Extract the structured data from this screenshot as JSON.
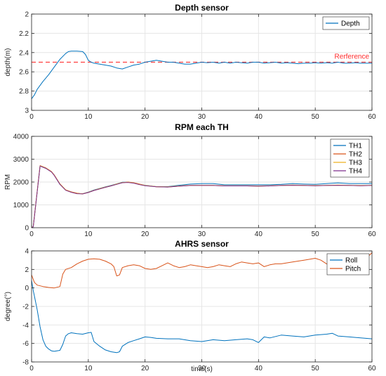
{
  "chart_data": [
    {
      "type": "line",
      "title": "Depth sensor",
      "xlabel": "",
      "ylabel": "depth(m)",
      "xlim": [
        0,
        60
      ],
      "ylim": [
        2,
        3
      ],
      "y_reversed": true,
      "grid": true,
      "legend_placement": "top-right",
      "xticks": [
        0,
        10,
        20,
        30,
        40,
        50,
        60
      ],
      "yticks": [
        2,
        2.2,
        2.4,
        2.6,
        2.8,
        3
      ],
      "ytick_labels": [
        "2",
        "2.2",
        "2.4",
        "2.6",
        "2.8",
        "3"
      ],
      "series": [
        {
          "name": "Depth",
          "color": "#0072BD",
          "x": [
            0,
            0.5,
            1,
            2,
            3,
            4,
            5,
            6,
            6.5,
            7,
            8,
            9,
            9.5,
            10,
            10.5,
            11,
            12,
            13,
            14,
            15,
            16,
            17,
            18,
            19,
            20,
            21,
            22,
            23,
            24,
            25,
            26,
            27,
            28,
            29,
            30,
            31,
            32,
            33,
            34,
            35,
            36,
            37,
            38,
            39,
            40,
            41,
            42,
            43,
            44,
            45,
            46,
            47,
            48,
            49,
            50,
            51,
            52,
            53,
            54,
            55,
            56,
            57,
            58,
            59,
            60
          ],
          "y": [
            2.88,
            2.84,
            2.78,
            2.7,
            2.63,
            2.55,
            2.47,
            2.41,
            2.39,
            2.385,
            2.385,
            2.39,
            2.42,
            2.48,
            2.5,
            2.51,
            2.52,
            2.53,
            2.54,
            2.56,
            2.57,
            2.55,
            2.53,
            2.52,
            2.5,
            2.49,
            2.48,
            2.49,
            2.5,
            2.5,
            2.51,
            2.52,
            2.52,
            2.51,
            2.5,
            2.505,
            2.5,
            2.51,
            2.5,
            2.51,
            2.5,
            2.505,
            2.51,
            2.5,
            2.5,
            2.51,
            2.505,
            2.5,
            2.51,
            2.505,
            2.51,
            2.515,
            2.51,
            2.51,
            2.505,
            2.51,
            2.505,
            2.51,
            2.5,
            2.51,
            2.51,
            2.505,
            2.51,
            2.51,
            2.51
          ]
        }
      ],
      "reference_line": {
        "y": 2.5,
        "label": "Rerference",
        "color": "#ff4040",
        "style": "dashed"
      }
    },
    {
      "type": "line",
      "title": "RPM each TH",
      "xlabel": "",
      "ylabel": "RPM",
      "xlim": [
        0,
        60
      ],
      "ylim": [
        0,
        4000
      ],
      "grid": true,
      "legend_placement": "top-right",
      "xticks": [
        0,
        10,
        20,
        30,
        40,
        50,
        60
      ],
      "yticks": [
        0,
        1000,
        2000,
        3000,
        4000
      ],
      "ytick_labels": [
        "0",
        "1000",
        "2000",
        "3000",
        "4000"
      ],
      "x": [
        0,
        0.3,
        1.5,
        2.5,
        3.5,
        4,
        5,
        6,
        7,
        8,
        9,
        10,
        11,
        12,
        13,
        14,
        15,
        16,
        17,
        18,
        19,
        20,
        22,
        24,
        26,
        28,
        30,
        32,
        34,
        36,
        38,
        40,
        42,
        44,
        46,
        48,
        50,
        52,
        54,
        56,
        58,
        60
      ],
      "series": [
        {
          "name": "TH1",
          "color": "#0072BD",
          "values": [
            0,
            50,
            2700,
            2600,
            2450,
            2300,
            1900,
            1650,
            1560,
            1500,
            1490,
            1560,
            1650,
            1720,
            1790,
            1850,
            1920,
            1990,
            1990,
            1960,
            1900,
            1860,
            1800,
            1800,
            1860,
            1910,
            1930,
            1930,
            1880,
            1880,
            1880,
            1880,
            1880,
            1900,
            1930,
            1910,
            1900,
            1930,
            1960,
            1930,
            1930,
            1930
          ]
        },
        {
          "name": "TH2",
          "color": "#D95319",
          "values": [
            0,
            60,
            2720,
            2620,
            2460,
            2310,
            1920,
            1660,
            1570,
            1510,
            1480,
            1540,
            1630,
            1700,
            1770,
            1830,
            1910,
            1970,
            2000,
            1970,
            1910,
            1850,
            1790,
            1780,
            1820,
            1850,
            1850,
            1850,
            1830,
            1830,
            1830,
            1820,
            1830,
            1850,
            1860,
            1850,
            1840,
            1850,
            1860,
            1850,
            1840,
            1850
          ]
        },
        {
          "name": "TH3",
          "color": "#EDB120",
          "values": [
            0,
            55,
            2710,
            2610,
            2450,
            2300,
            1910,
            1650,
            1560,
            1500,
            1490,
            1550,
            1640,
            1710,
            1780,
            1840,
            1910,
            1980,
            1990,
            1960,
            1900,
            1850,
            1800,
            1790,
            1830,
            1860,
            1860,
            1860,
            1840,
            1840,
            1840,
            1830,
            1840,
            1860,
            1870,
            1860,
            1850,
            1860,
            1870,
            1860,
            1850,
            1860
          ]
        },
        {
          "name": "TH4",
          "color": "#7E2F8E",
          "values": [
            0,
            50,
            2700,
            2600,
            2440,
            2290,
            1900,
            1640,
            1550,
            1490,
            1480,
            1540,
            1630,
            1700,
            1770,
            1830,
            1900,
            1970,
            1980,
            1950,
            1890,
            1840,
            1790,
            1780,
            1820,
            1850,
            1850,
            1850,
            1830,
            1830,
            1830,
            1820,
            1830,
            1850,
            1860,
            1850,
            1840,
            1850,
            1860,
            1850,
            1840,
            1850
          ]
        }
      ]
    },
    {
      "type": "line",
      "title": "AHRS sensor",
      "xlabel": "time(s)",
      "ylabel": "degree(°)",
      "xlim": [
        0,
        60
      ],
      "ylim": [
        -8,
        4
      ],
      "grid": true,
      "legend_placement": "top-right",
      "xticks": [
        0,
        10,
        20,
        30,
        40,
        50,
        60
      ],
      "yticks": [
        -8,
        -6,
        -4,
        -2,
        0,
        2,
        4
      ],
      "ytick_labels": [
        "-8",
        "-6",
        "-4",
        "-2",
        "0",
        "2",
        "4"
      ],
      "series": [
        {
          "name": "Roll",
          "color": "#0072BD",
          "x": [
            0,
            0.3,
            0.6,
            1,
            1.5,
            2,
            2.5,
            3,
            3.5,
            4,
            5,
            5.5,
            6,
            6.5,
            7,
            8,
            9,
            10,
            10.5,
            11,
            12,
            13,
            14,
            15,
            15.5,
            16,
            17,
            18,
            19,
            20,
            21,
            22,
            24,
            26,
            28,
            30,
            32,
            34,
            36,
            38,
            39,
            40,
            41,
            42,
            44,
            46,
            48,
            50,
            52,
            53,
            54,
            56,
            58,
            60
          ],
          "y": [
            0.8,
            -0.3,
            -1.2,
            -2.4,
            -4.2,
            -5.6,
            -6.3,
            -6.6,
            -6.8,
            -6.85,
            -6.75,
            -6.1,
            -5.2,
            -4.95,
            -4.85,
            -4.95,
            -5.0,
            -4.85,
            -4.8,
            -5.8,
            -6.3,
            -6.7,
            -6.9,
            -7.0,
            -6.9,
            -6.3,
            -5.9,
            -5.7,
            -5.5,
            -5.3,
            -5.35,
            -5.45,
            -5.5,
            -5.5,
            -5.7,
            -5.8,
            -5.6,
            -5.7,
            -5.6,
            -5.5,
            -5.6,
            -5.9,
            -5.3,
            -5.4,
            -5.1,
            -5.2,
            -5.3,
            -5.1,
            -5.0,
            -4.9,
            -5.2,
            -5.3,
            -5.4,
            -5.5
          ]
        },
        {
          "name": "Pitch",
          "color": "#D95319",
          "x": [
            0,
            0.5,
            1,
            2,
            3,
            4,
            5,
            5.5,
            6,
            7,
            8,
            9,
            10,
            11,
            12,
            13,
            14,
            14.5,
            15,
            15.5,
            16,
            17,
            18,
            19,
            20,
            21,
            22,
            23,
            24,
            25,
            26,
            27,
            28,
            29,
            30,
            31,
            32,
            33,
            34,
            35,
            36,
            37,
            38,
            39,
            40,
            41,
            42,
            43,
            44,
            46,
            48,
            50,
            51,
            52,
            53,
            54,
            56,
            58,
            59,
            60
          ],
          "y": [
            1.4,
            0.6,
            0.3,
            0.15,
            0.05,
            0.0,
            0.15,
            1.5,
            2.0,
            2.2,
            2.6,
            2.9,
            3.1,
            3.15,
            3.1,
            2.9,
            2.6,
            2.3,
            1.3,
            1.4,
            2.2,
            2.4,
            2.5,
            2.4,
            2.1,
            2.0,
            2.1,
            2.4,
            2.7,
            2.4,
            2.2,
            2.3,
            2.5,
            2.4,
            2.3,
            2.2,
            2.3,
            2.5,
            2.4,
            2.3,
            2.6,
            2.8,
            2.7,
            2.6,
            2.7,
            2.3,
            2.5,
            2.6,
            2.6,
            2.8,
            3.0,
            3.2,
            3.0,
            2.6,
            2.5,
            2.6,
            2.6,
            2.8,
            3.2,
            3.8
          ]
        }
      ]
    }
  ]
}
